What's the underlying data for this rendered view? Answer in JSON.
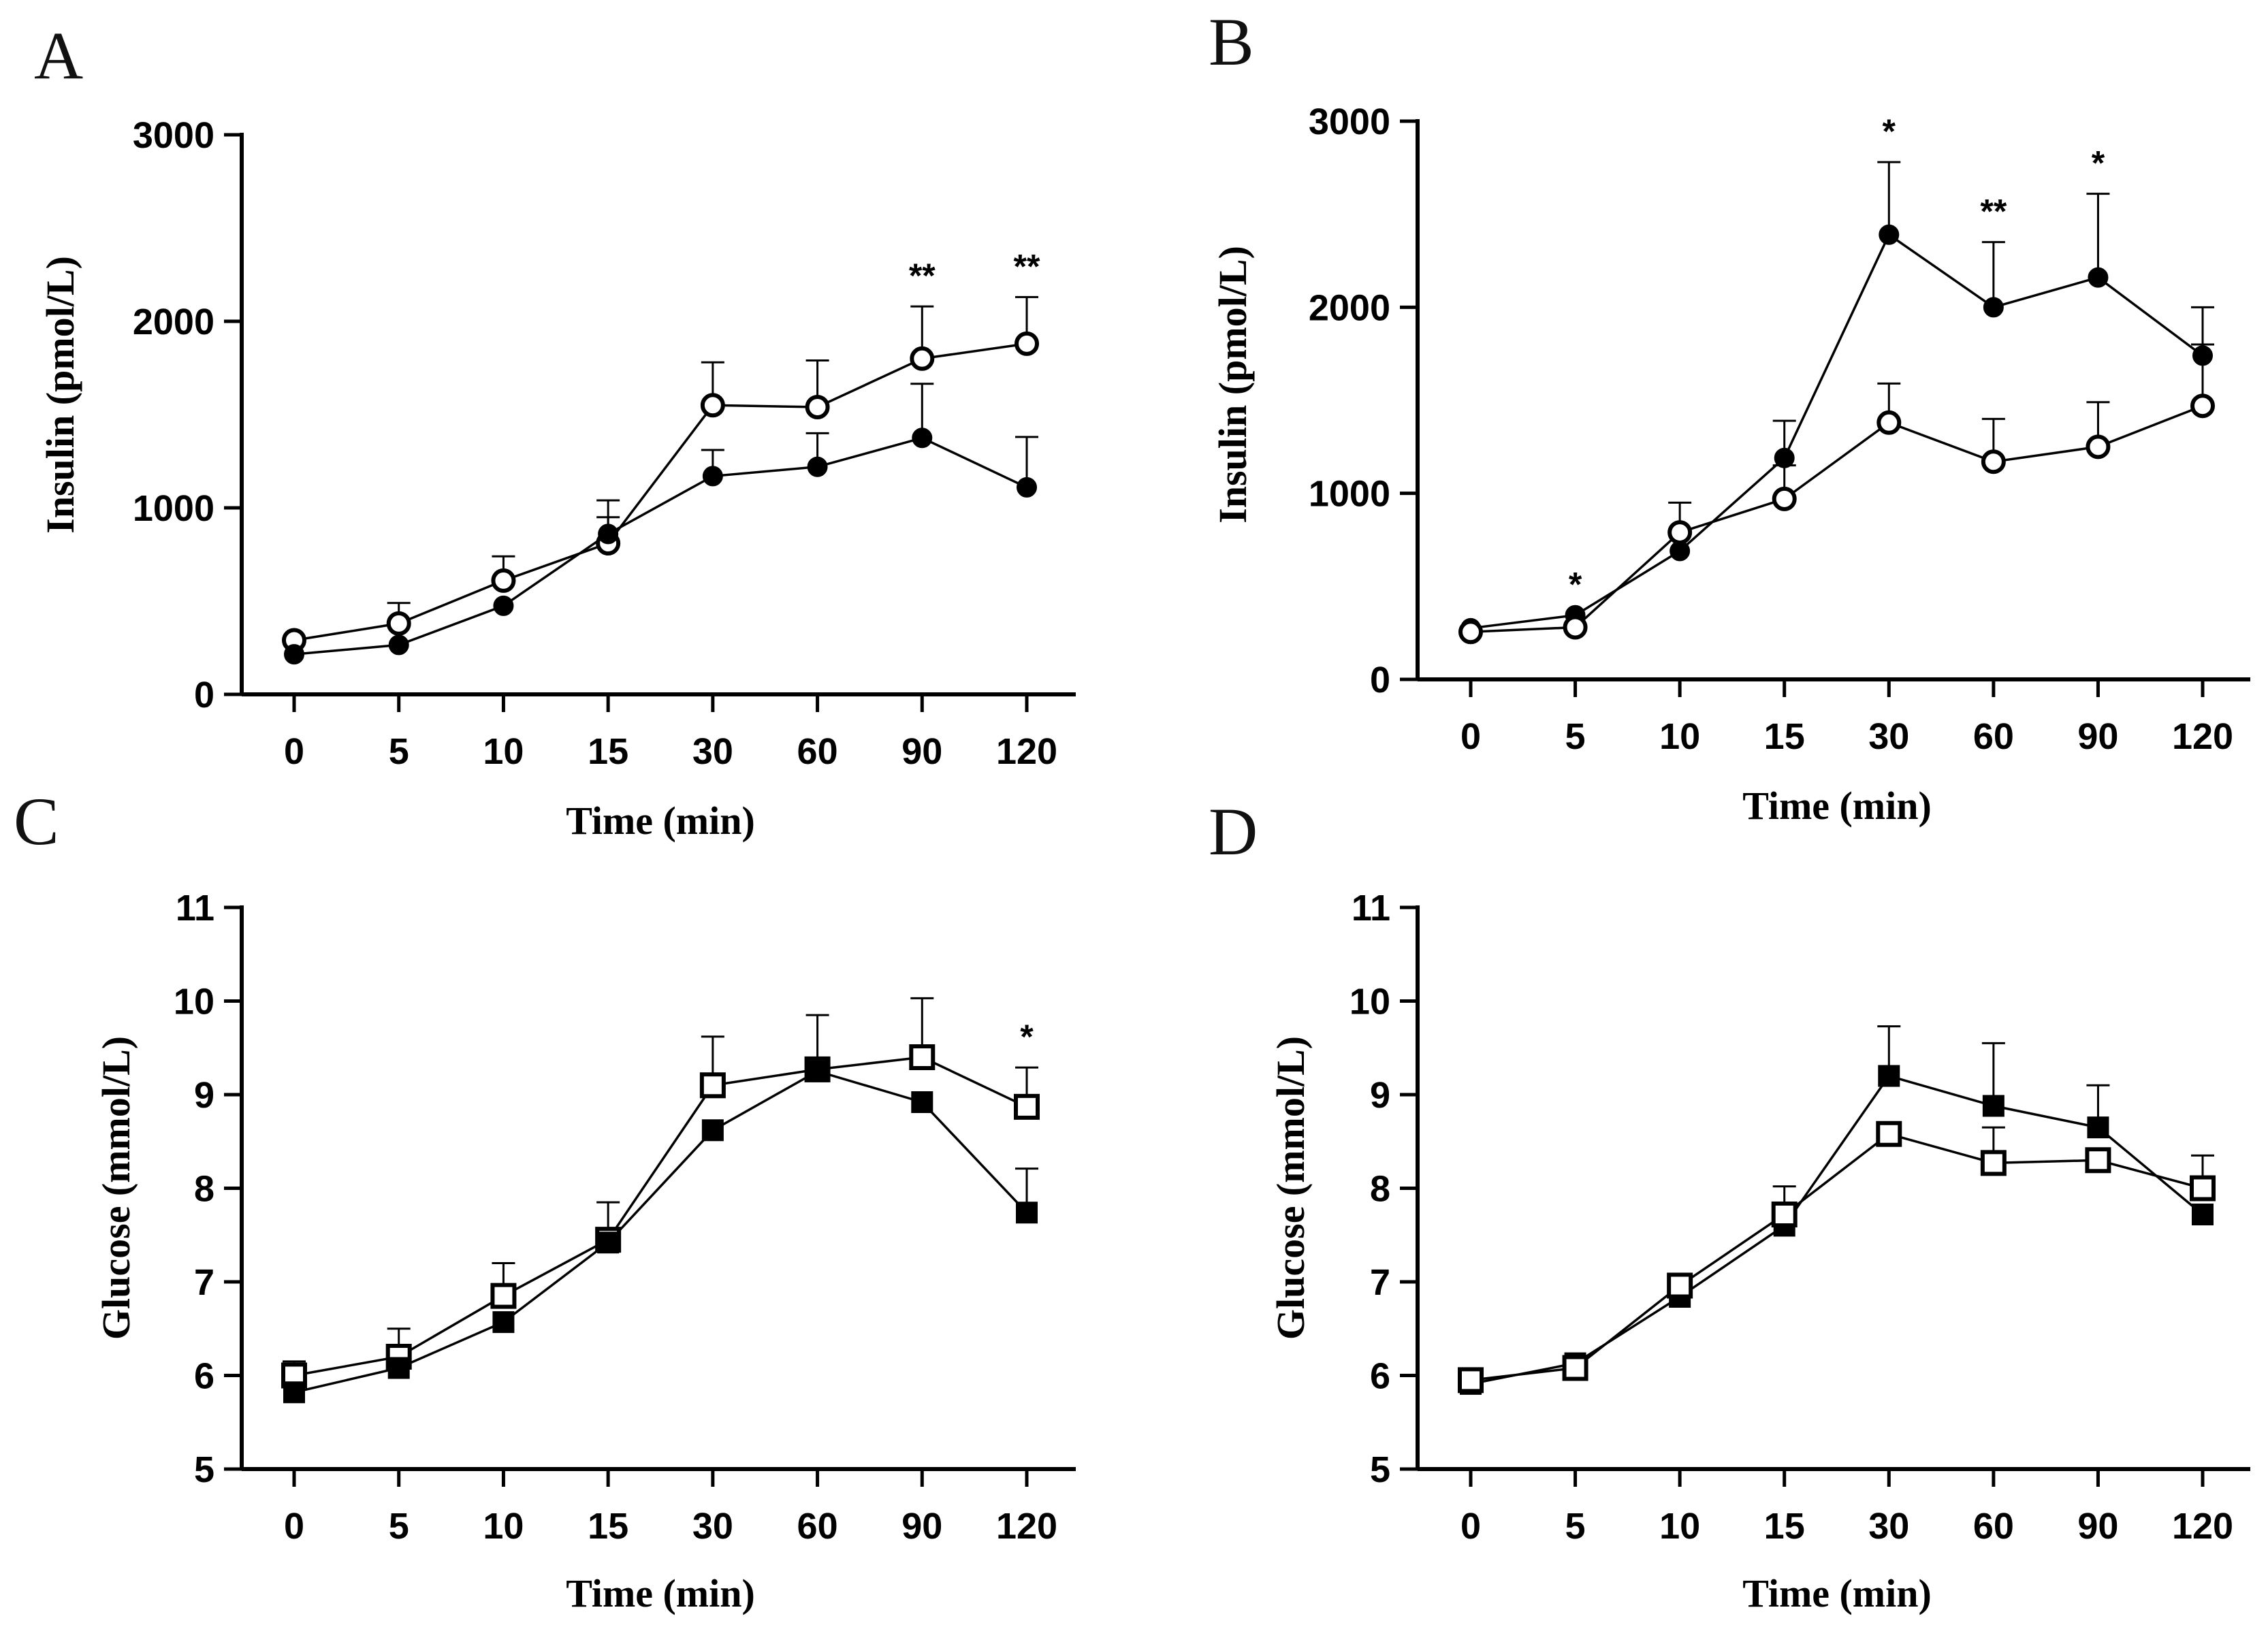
{
  "chart_data": [
    {
      "panel": "A",
      "type": "line",
      "categories": [
        "0",
        "5",
        "10",
        "15",
        "30",
        "60",
        "90",
        "120"
      ],
      "xlabel": "Time (min)",
      "ylabel": "Insulin (pmol/L)",
      "ylim": [
        0,
        3000
      ],
      "yticks": [
        0,
        1000,
        2000,
        3000
      ],
      "series": [
        {
          "name": "open circles",
          "marker": "circle-open",
          "values": [
            290,
            380,
            610,
            810,
            1550,
            1540,
            1800,
            1880
          ],
          "error": [
            0,
            110,
            130,
            140,
            230,
            250,
            280,
            250
          ]
        },
        {
          "name": "filled circles",
          "marker": "circle-filled",
          "values": [
            215,
            265,
            475,
            860,
            1170,
            1220,
            1375,
            1110
          ],
          "error": [
            0,
            0,
            0,
            180,
            140,
            180,
            290,
            270
          ]
        }
      ],
      "significance": [
        "",
        "",
        "",
        "",
        "",
        "",
        "**",
        "**"
      ]
    },
    {
      "panel": "B",
      "type": "line",
      "categories": [
        "0",
        "5",
        "10",
        "15",
        "30",
        "60",
        "90",
        "120"
      ],
      "xlabel": "Time (min)",
      "ylabel": "Insulin (pmol/L)",
      "ylim": [
        0,
        3000
      ],
      "yticks": [
        0,
        1000,
        2000,
        3000
      ],
      "series": [
        {
          "name": "filled circles",
          "marker": "circle-filled",
          "values": [
            275,
            345,
            690,
            1190,
            2390,
            2000,
            2160,
            1740
          ],
          "error": [
            0,
            0,
            0,
            200,
            390,
            350,
            450,
            260
          ]
        },
        {
          "name": "open circles",
          "marker": "circle-open",
          "values": [
            255,
            280,
            790,
            970,
            1380,
            1170,
            1250,
            1470
          ],
          "error": [
            0,
            0,
            160,
            180,
            210,
            230,
            240,
            330
          ]
        }
      ],
      "significance": [
        "",
        "*",
        "",
        "",
        "*",
        "**",
        "*",
        ""
      ]
    },
    {
      "panel": "C",
      "type": "line",
      "categories": [
        "0",
        "5",
        "10",
        "15",
        "30",
        "60",
        "90",
        "120"
      ],
      "xlabel": "Time (min)",
      "ylabel": "Glucose (mmol/L)",
      "ylim": [
        5,
        11
      ],
      "yticks": [
        5,
        6,
        7,
        8,
        9,
        10,
        11
      ],
      "series": [
        {
          "name": "open squares",
          "marker": "square-open",
          "values": [
            6.0,
            6.2,
            6.85,
            7.45,
            9.1,
            9.27,
            9.4,
            8.87
          ],
          "error": [
            0.15,
            0.3,
            0.35,
            0.4,
            0.52,
            0.58,
            0.63,
            0.42
          ]
        },
        {
          "name": "filled squares",
          "marker": "square-filled",
          "values": [
            5.82,
            6.08,
            6.57,
            7.42,
            8.62,
            9.25,
            8.92,
            7.74
          ],
          "error": [
            0,
            0,
            0,
            0,
            0,
            0,
            0,
            0.47
          ]
        }
      ],
      "significance": [
        "",
        "",
        "",
        "",
        "",
        "",
        "",
        "*"
      ]
    },
    {
      "panel": "D",
      "type": "line",
      "categories": [
        "0",
        "5",
        "10",
        "15",
        "30",
        "60",
        "90",
        "120"
      ],
      "xlabel": "Time (min)",
      "ylabel": "Glucose (mmol/L)",
      "ylim": [
        5,
        11
      ],
      "yticks": [
        5,
        6,
        7,
        8,
        9,
        10,
        11
      ],
      "series": [
        {
          "name": "filled squares",
          "marker": "square-filled",
          "values": [
            5.91,
            6.13,
            6.84,
            7.6,
            9.2,
            8.88,
            8.65,
            7.72
          ],
          "error": [
            0,
            0,
            0,
            0,
            0.53,
            0.67,
            0.45,
            0
          ]
        },
        {
          "name": "open squares",
          "marker": "square-open",
          "values": [
            5.95,
            6.08,
            6.96,
            7.72,
            8.58,
            8.27,
            8.3,
            8.0
          ],
          "error": [
            0,
            0,
            0,
            0.3,
            0,
            0.38,
            0,
            0.35
          ]
        }
      ],
      "significance": [
        "",
        "",
        "",
        "",
        "",
        "",
        "",
        ""
      ]
    }
  ]
}
